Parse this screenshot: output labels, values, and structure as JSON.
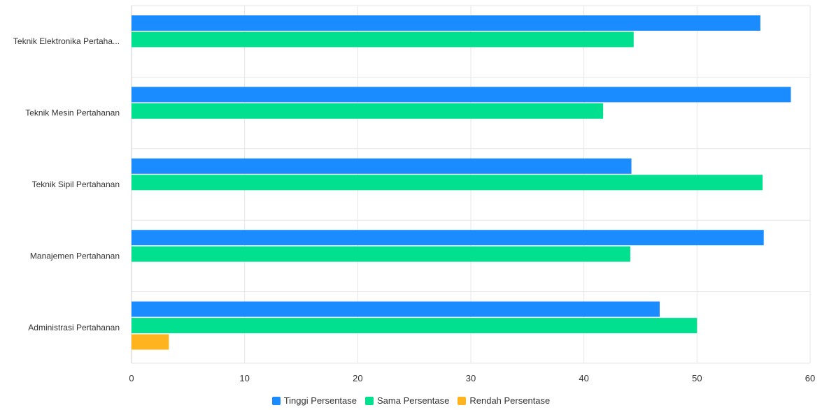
{
  "chart_data": {
    "type": "bar",
    "orientation": "horizontal",
    "categories": [
      "Teknik Elektronika Pertaha...",
      "Teknik Mesin Pertahanan",
      "Teknik Sipil Pertahanan",
      "Manajemen Pertahanan",
      "Administrasi Pertahanan"
    ],
    "series": [
      {
        "name": "Tinggi Persentase",
        "color": "#1a8cff",
        "values": [
          55.6,
          58.3,
          44.2,
          55.9,
          46.7
        ]
      },
      {
        "name": "Sama Persentase",
        "color": "#00e08f",
        "values": [
          44.4,
          41.7,
          55.8,
          44.1,
          50.0
        ]
      },
      {
        "name": "Rendah Persentase",
        "color": "#ffb31f",
        "values": [
          0,
          0,
          0,
          0,
          3.3
        ]
      }
    ],
    "xlim": [
      0,
      60
    ],
    "xticks": [
      "0",
      "10",
      "20",
      "30",
      "40",
      "50",
      "60"
    ],
    "grid": true,
    "legend_position": "bottom-center",
    "title": "",
    "xlabel": "",
    "ylabel": ""
  }
}
